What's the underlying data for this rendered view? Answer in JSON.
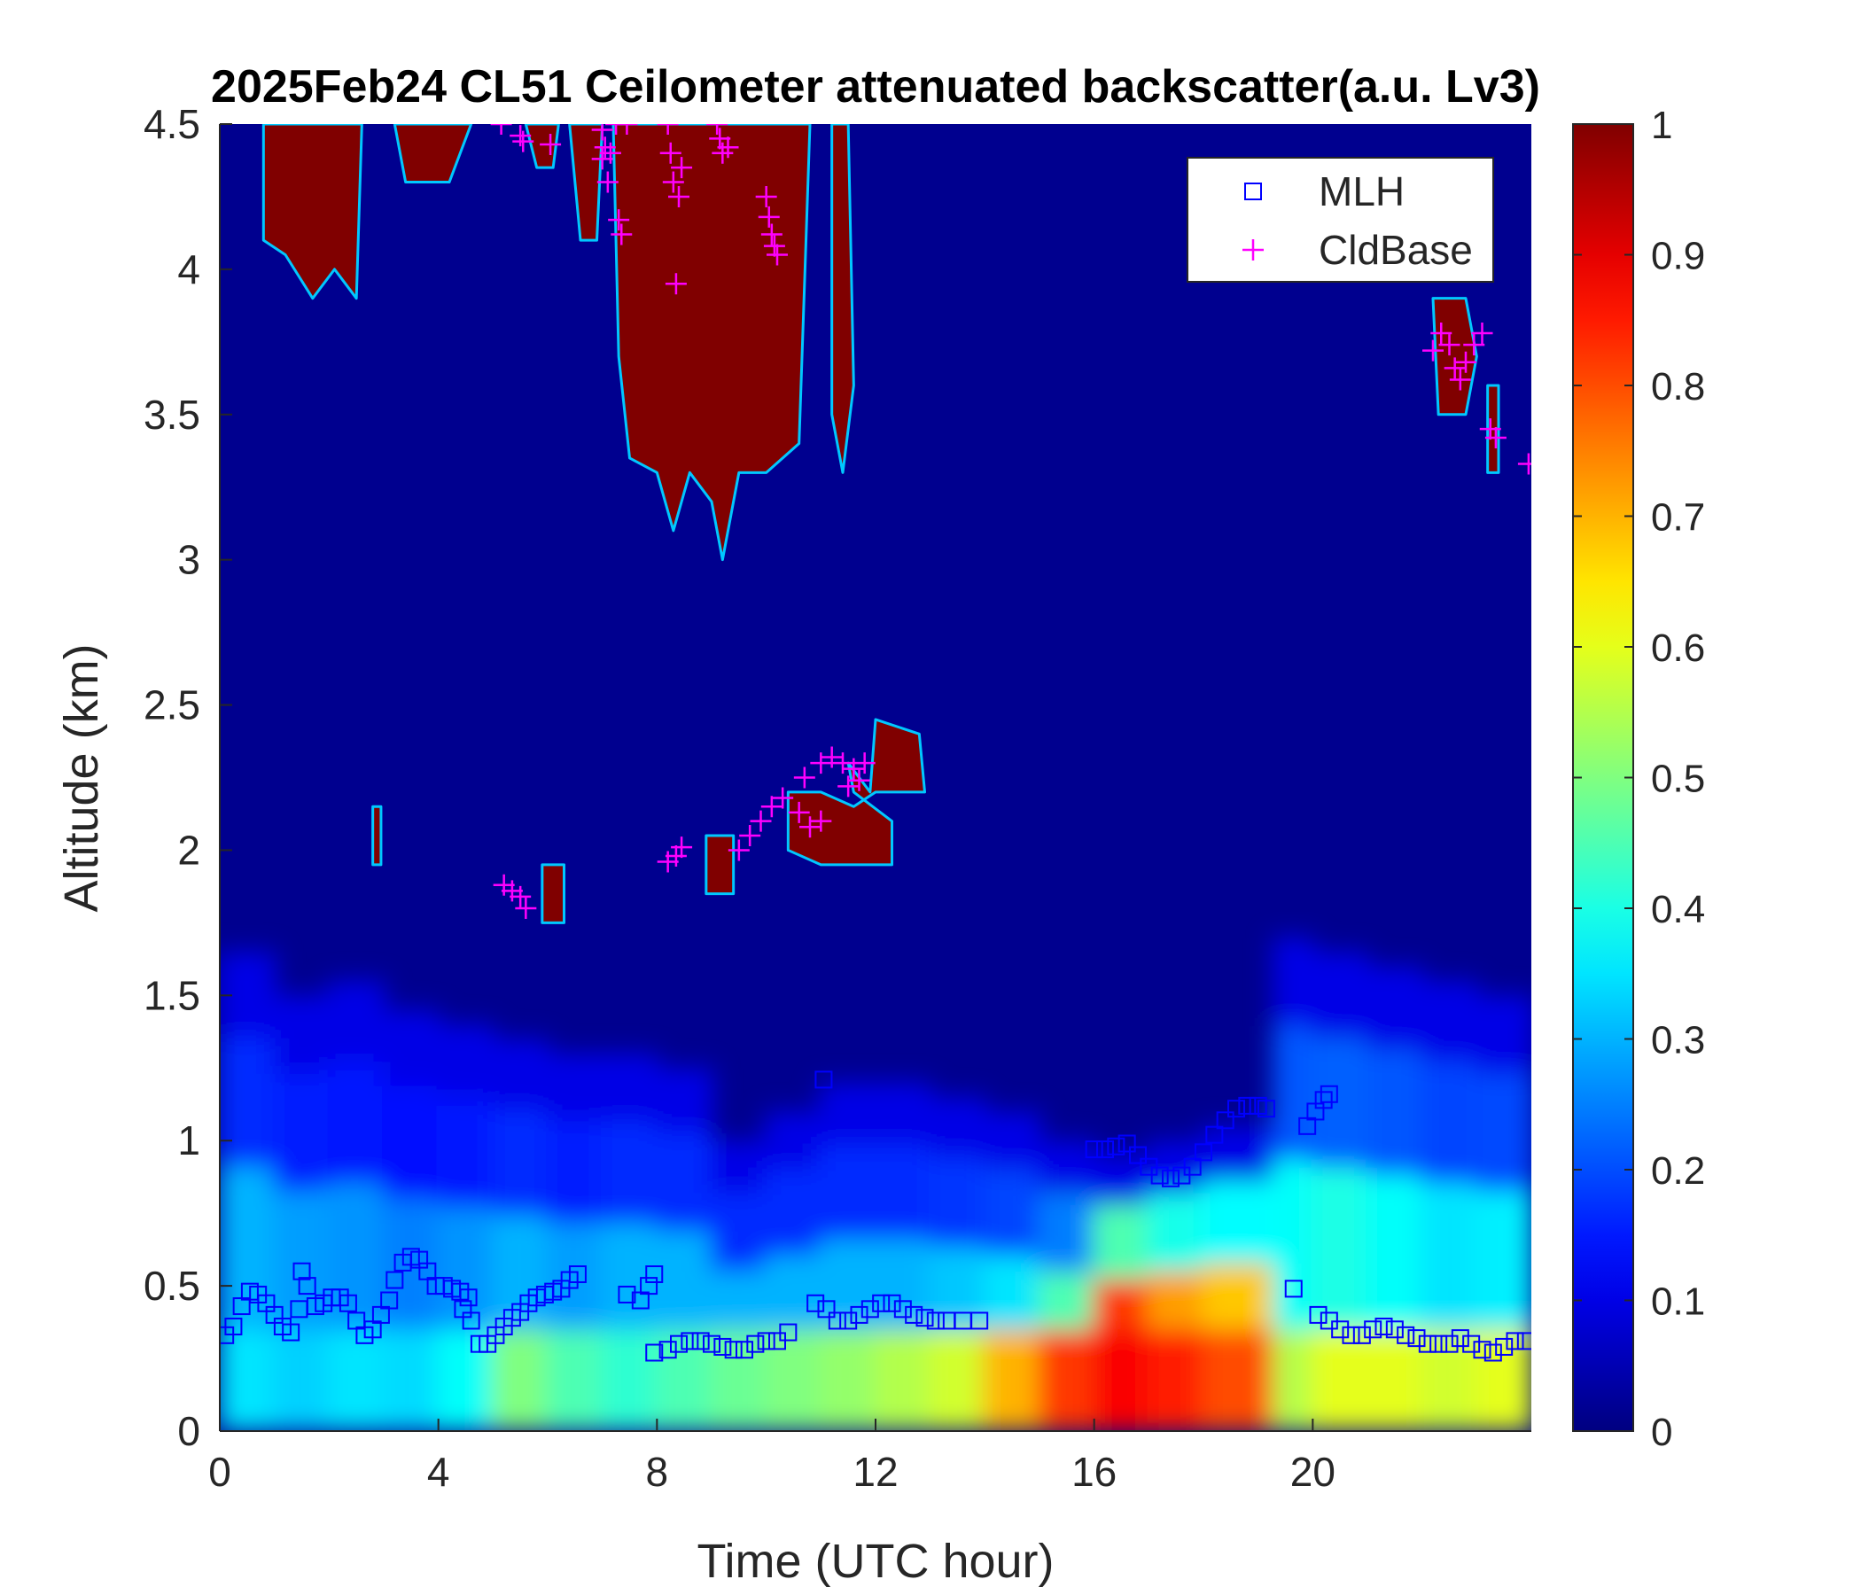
{
  "chart_data": {
    "type": "heatmap",
    "title": "2025Feb24 CL51 Ceilometer attenuated backscatter(a.u. Lv3)",
    "xlabel": "Time (UTC hour)",
    "ylabel": "Altitude (km)",
    "xlim": [
      0,
      24
    ],
    "ylim": [
      0,
      4.5
    ],
    "x_ticks": [
      0,
      4,
      8,
      12,
      16,
      20
    ],
    "x_tick_labels": [
      "0",
      "4",
      "8",
      "12",
      "16",
      "20"
    ],
    "y_ticks": [
      0,
      0.5,
      1,
      1.5,
      2,
      2.5,
      3,
      3.5,
      4,
      4.5
    ],
    "y_tick_labels": [
      "0",
      "0.5",
      "1",
      "1.5",
      "2",
      "2.5",
      "3",
      "3.5",
      "4",
      "4.5"
    ],
    "colorbar": {
      "colormap": "jet",
      "range": [
        0,
        1
      ],
      "ticks": [
        0,
        0.1,
        0.2,
        0.3,
        0.4,
        0.5,
        0.6,
        0.7,
        0.8,
        0.9,
        1
      ],
      "tick_labels": [
        "0",
        "0.1",
        "0.2",
        "0.3",
        "0.4",
        "0.5",
        "0.6",
        "0.7",
        "0.8",
        "0.9",
        "1"
      ]
    },
    "background_colors": {
      "plot": "#00008f",
      "figure": "#ffffff"
    },
    "legend": {
      "location": "top-right",
      "entries": [
        {
          "label": "MLH",
          "marker": "square",
          "color": "#0000ff"
        },
        {
          "label": "CldBase",
          "marker": "plus",
          "color": "#ff00ff"
        }
      ]
    },
    "boundary_layer_intensity": [
      {
        "t0": 0,
        "t1": 1,
        "low": 0.35,
        "mid": 0.3,
        "top_km": 1.65
      },
      {
        "t0": 1,
        "t1": 2,
        "low": 0.33,
        "mid": 0.28,
        "top_km": 1.5
      },
      {
        "t0": 2,
        "t1": 3,
        "low": 0.35,
        "mid": 0.27,
        "top_km": 1.55
      },
      {
        "t0": 3,
        "t1": 4,
        "low": 0.34,
        "mid": 0.25,
        "top_km": 1.45
      },
      {
        "t0": 4,
        "t1": 5,
        "low": 0.38,
        "mid": 0.27,
        "top_km": 1.4
      },
      {
        "t0": 5,
        "t1": 6,
        "low": 0.5,
        "mid": 0.3,
        "top_km": 1.35
      },
      {
        "t0": 6,
        "t1": 7,
        "low": 0.45,
        "mid": 0.28,
        "top_km": 1.3
      },
      {
        "t0": 7,
        "t1": 8,
        "low": 0.42,
        "mid": 0.3,
        "top_km": 1.3
      },
      {
        "t0": 8,
        "t1": 9,
        "low": 0.45,
        "mid": 0.3,
        "top_km": 1.25
      },
      {
        "t0": 9,
        "t1": 10,
        "low": 0.48,
        "mid": 0.3,
        "top_km": 1.0
      },
      {
        "t0": 10,
        "t1": 11,
        "low": 0.5,
        "mid": 0.3,
        "top_km": 1.1
      },
      {
        "t0": 11,
        "t1": 12,
        "low": 0.52,
        "mid": 0.3,
        "top_km": 1.2
      },
      {
        "t0": 12,
        "t1": 13,
        "low": 0.55,
        "mid": 0.3,
        "top_km": 1.2
      },
      {
        "t0": 13,
        "t1": 14,
        "low": 0.58,
        "mid": 0.32,
        "top_km": 1.15
      },
      {
        "t0": 14,
        "t1": 15,
        "low": 0.7,
        "mid": 0.35,
        "top_km": 1.1
      },
      {
        "t0": 15,
        "t1": 16,
        "low": 0.82,
        "mid": 0.45,
        "top_km": 1.0
      },
      {
        "t0": 16,
        "t1": 17,
        "low": 0.88,
        "mid": 0.82,
        "top_km": 0.95
      },
      {
        "t0": 17,
        "t1": 18,
        "low": 0.85,
        "mid": 0.72,
        "top_km": 1.0
      },
      {
        "t0": 18,
        "t1": 19.3,
        "low": 0.8,
        "mid": 0.68,
        "top_km": 1.05
      },
      {
        "t0": 19.3,
        "t1": 20,
        "low": 0.55,
        "mid": 0.38,
        "top_km": 1.7
      },
      {
        "t0": 20,
        "t1": 21,
        "low": 0.6,
        "mid": 0.4,
        "top_km": 1.65
      },
      {
        "t0": 21,
        "t1": 22,
        "low": 0.6,
        "mid": 0.38,
        "top_km": 1.6
      },
      {
        "t0": 22,
        "t1": 23,
        "low": 0.58,
        "mid": 0.35,
        "top_km": 1.55
      },
      {
        "t0": 23,
        "t1": 24,
        "low": 0.6,
        "mid": 0.36,
        "top_km": 1.5
      }
    ],
    "cloud_regions_km": [
      {
        "points": [
          [
            0.8,
            4.5
          ],
          [
            0.8,
            4.1
          ],
          [
            1.2,
            4.05
          ],
          [
            1.7,
            3.9
          ],
          [
            2.1,
            4.0
          ],
          [
            2.5,
            3.9
          ],
          [
            2.6,
            4.5
          ]
        ]
      },
      {
        "points": [
          [
            3.2,
            4.5
          ],
          [
            3.4,
            4.3
          ],
          [
            3.8,
            4.3
          ],
          [
            4.2,
            4.3
          ],
          [
            4.6,
            4.5
          ]
        ]
      },
      {
        "points": [
          [
            5.6,
            4.5
          ],
          [
            5.8,
            4.35
          ],
          [
            6.1,
            4.35
          ],
          [
            6.2,
            4.5
          ]
        ]
      },
      {
        "points": [
          [
            6.4,
            4.5
          ],
          [
            6.6,
            4.1
          ],
          [
            6.9,
            4.1
          ],
          [
            7.0,
            4.5
          ]
        ]
      },
      {
        "points": [
          [
            7.2,
            4.5
          ],
          [
            7.3,
            3.7
          ],
          [
            7.5,
            3.35
          ],
          [
            8.0,
            3.3
          ],
          [
            8.3,
            3.1
          ],
          [
            8.6,
            3.3
          ],
          [
            9.0,
            3.2
          ],
          [
            9.2,
            3.0
          ],
          [
            9.5,
            3.3
          ],
          [
            10.0,
            3.3
          ],
          [
            10.6,
            3.4
          ],
          [
            10.8,
            4.5
          ]
        ]
      },
      {
        "points": [
          [
            11.2,
            4.5
          ],
          [
            11.2,
            3.5
          ],
          [
            11.4,
            3.3
          ],
          [
            11.6,
            3.6
          ],
          [
            11.5,
            4.5
          ]
        ]
      },
      {
        "points": [
          [
            22.2,
            3.9
          ],
          [
            22.3,
            3.5
          ],
          [
            22.8,
            3.5
          ],
          [
            23.0,
            3.7
          ],
          [
            22.8,
            3.9
          ]
        ]
      },
      {
        "points": [
          [
            23.2,
            3.6
          ],
          [
            23.2,
            3.3
          ],
          [
            23.4,
            3.3
          ],
          [
            23.4,
            3.6
          ]
        ]
      },
      {
        "points": [
          [
            5.9,
            1.95
          ],
          [
            5.9,
            1.75
          ],
          [
            6.3,
            1.75
          ],
          [
            6.3,
            1.95
          ]
        ]
      },
      {
        "points": [
          [
            8.9,
            2.05
          ],
          [
            8.9,
            1.85
          ],
          [
            9.4,
            1.85
          ],
          [
            9.4,
            2.05
          ]
        ]
      },
      {
        "points": [
          [
            10.4,
            2.2
          ],
          [
            10.4,
            2.0
          ],
          [
            11.0,
            1.95
          ],
          [
            11.5,
            1.95
          ],
          [
            12.3,
            1.95
          ],
          [
            12.3,
            2.1
          ],
          [
            11.6,
            2.2
          ],
          [
            11.5,
            2.3
          ],
          [
            11.9,
            2.2
          ],
          [
            12.0,
            2.45
          ],
          [
            12.8,
            2.4
          ],
          [
            12.9,
            2.2
          ],
          [
            12.0,
            2.2
          ],
          [
            11.6,
            2.15
          ],
          [
            11.0,
            2.2
          ]
        ]
      },
      {
        "points": [
          [
            2.8,
            2.15
          ],
          [
            2.8,
            1.95
          ],
          [
            2.95,
            1.95
          ],
          [
            2.95,
            2.15
          ]
        ]
      }
    ],
    "mlh_points": [
      [
        0.1,
        0.33
      ],
      [
        0.25,
        0.36
      ],
      [
        0.4,
        0.43
      ],
      [
        0.55,
        0.48
      ],
      [
        0.7,
        0.47
      ],
      [
        0.85,
        0.44
      ],
      [
        1.0,
        0.4
      ],
      [
        1.15,
        0.36
      ],
      [
        1.3,
        0.34
      ],
      [
        1.45,
        0.42
      ],
      [
        1.5,
        0.55
      ],
      [
        1.6,
        0.5
      ],
      [
        1.75,
        0.43
      ],
      [
        1.9,
        0.44
      ],
      [
        2.05,
        0.46
      ],
      [
        2.2,
        0.46
      ],
      [
        2.35,
        0.44
      ],
      [
        2.5,
        0.38
      ],
      [
        2.65,
        0.33
      ],
      [
        2.8,
        0.35
      ],
      [
        2.95,
        0.4
      ],
      [
        3.1,
        0.45
      ],
      [
        3.2,
        0.52
      ],
      [
        3.35,
        0.58
      ],
      [
        3.5,
        0.6
      ],
      [
        3.65,
        0.59
      ],
      [
        3.8,
        0.55
      ],
      [
        3.95,
        0.5
      ],
      [
        4.1,
        0.5
      ],
      [
        4.25,
        0.49
      ],
      [
        4.4,
        0.48
      ],
      [
        4.55,
        0.46
      ],
      [
        4.45,
        0.42
      ],
      [
        4.6,
        0.38
      ],
      [
        4.75,
        0.3
      ],
      [
        4.9,
        0.3
      ],
      [
        5.05,
        0.33
      ],
      [
        5.2,
        0.36
      ],
      [
        5.35,
        0.39
      ],
      [
        5.5,
        0.41
      ],
      [
        5.65,
        0.44
      ],
      [
        5.8,
        0.46
      ],
      [
        5.95,
        0.47
      ],
      [
        6.1,
        0.48
      ],
      [
        6.25,
        0.49
      ],
      [
        6.4,
        0.52
      ],
      [
        6.55,
        0.54
      ],
      [
        7.45,
        0.47
      ],
      [
        7.7,
        0.45
      ],
      [
        7.85,
        0.5
      ],
      [
        7.95,
        0.54
      ],
      [
        7.95,
        0.27
      ],
      [
        8.2,
        0.28
      ],
      [
        8.4,
        0.3
      ],
      [
        8.6,
        0.31
      ],
      [
        8.8,
        0.31
      ],
      [
        9.0,
        0.3
      ],
      [
        9.2,
        0.29
      ],
      [
        9.4,
        0.28
      ],
      [
        9.6,
        0.28
      ],
      [
        9.8,
        0.3
      ],
      [
        10.0,
        0.31
      ],
      [
        10.2,
        0.31
      ],
      [
        10.4,
        0.34
      ],
      [
        10.9,
        0.44
      ],
      [
        11.1,
        0.42
      ],
      [
        11.3,
        0.38
      ],
      [
        11.5,
        0.38
      ],
      [
        11.7,
        0.4
      ],
      [
        11.9,
        0.42
      ],
      [
        12.1,
        0.44
      ],
      [
        12.3,
        0.44
      ],
      [
        12.5,
        0.42
      ],
      [
        12.7,
        0.4
      ],
      [
        12.9,
        0.39
      ],
      [
        13.1,
        0.38
      ],
      [
        13.3,
        0.38
      ],
      [
        13.6,
        0.38
      ],
      [
        13.9,
        0.38
      ],
      [
        11.05,
        1.21
      ],
      [
        16.0,
        0.97
      ],
      [
        16.2,
        0.97
      ],
      [
        16.4,
        0.98
      ],
      [
        16.6,
        0.99
      ],
      [
        16.8,
        0.95
      ],
      [
        17.0,
        0.91
      ],
      [
        17.2,
        0.88
      ],
      [
        17.4,
        0.87
      ],
      [
        17.6,
        0.88
      ],
      [
        17.8,
        0.91
      ],
      [
        18.0,
        0.96
      ],
      [
        18.2,
        1.02
      ],
      [
        18.4,
        1.07
      ],
      [
        18.6,
        1.11
      ],
      [
        18.8,
        1.12
      ],
      [
        19.0,
        1.12
      ],
      [
        19.15,
        1.11
      ],
      [
        19.65,
        0.49
      ],
      [
        19.9,
        1.05
      ],
      [
        20.05,
        1.1
      ],
      [
        20.2,
        1.14
      ],
      [
        20.3,
        1.16
      ],
      [
        20.1,
        0.4
      ],
      [
        20.3,
        0.38
      ],
      [
        20.5,
        0.35
      ],
      [
        20.7,
        0.33
      ],
      [
        20.9,
        0.33
      ],
      [
        21.1,
        0.35
      ],
      [
        21.3,
        0.36
      ],
      [
        21.5,
        0.35
      ],
      [
        21.7,
        0.33
      ],
      [
        21.9,
        0.32
      ],
      [
        22.1,
        0.3
      ],
      [
        22.3,
        0.3
      ],
      [
        22.5,
        0.3
      ],
      [
        22.7,
        0.32
      ],
      [
        22.9,
        0.3
      ],
      [
        23.1,
        0.28
      ],
      [
        23.3,
        0.27
      ],
      [
        23.5,
        0.29
      ],
      [
        23.7,
        0.31
      ],
      [
        23.9,
        0.31
      ]
    ],
    "cldbase_points": [
      [
        5.15,
        4.5
      ],
      [
        5.5,
        4.46
      ],
      [
        5.55,
        4.44
      ],
      [
        6.05,
        4.43
      ],
      [
        7.0,
        4.38
      ],
      [
        7.0,
        4.48
      ],
      [
        7.05,
        4.42
      ],
      [
        7.1,
        4.3
      ],
      [
        7.15,
        4.4
      ],
      [
        7.25,
        4.5
      ],
      [
        7.3,
        4.17
      ],
      [
        7.35,
        4.12
      ],
      [
        7.45,
        4.5
      ],
      [
        8.2,
        4.5
      ],
      [
        8.25,
        4.4
      ],
      [
        8.3,
        4.3
      ],
      [
        8.35,
        3.95
      ],
      [
        8.4,
        4.25
      ],
      [
        8.45,
        4.35
      ],
      [
        9.1,
        4.5
      ],
      [
        9.15,
        4.45
      ],
      [
        9.2,
        4.4
      ],
      [
        9.3,
        4.42
      ],
      [
        10.0,
        4.25
      ],
      [
        10.05,
        4.18
      ],
      [
        10.1,
        4.12
      ],
      [
        10.15,
        4.08
      ],
      [
        10.2,
        4.05
      ],
      [
        5.2,
        1.88
      ],
      [
        5.35,
        1.86
      ],
      [
        5.5,
        1.84
      ],
      [
        5.6,
        1.8
      ],
      [
        8.2,
        1.96
      ],
      [
        8.35,
        1.98
      ],
      [
        8.45,
        2.01
      ],
      [
        9.5,
        2.0
      ],
      [
        9.7,
        2.05
      ],
      [
        9.9,
        2.1
      ],
      [
        10.1,
        2.15
      ],
      [
        10.3,
        2.18
      ],
      [
        10.6,
        2.13
      ],
      [
        10.8,
        2.08
      ],
      [
        11.0,
        2.1
      ],
      [
        11.0,
        2.3
      ],
      [
        11.2,
        2.32
      ],
      [
        11.4,
        2.3
      ],
      [
        11.6,
        2.28
      ],
      [
        11.8,
        2.3
      ],
      [
        11.7,
        2.24
      ],
      [
        11.5,
        2.22
      ],
      [
        10.7,
        2.25
      ],
      [
        22.2,
        3.72
      ],
      [
        22.35,
        3.78
      ],
      [
        22.5,
        3.74
      ],
      [
        22.6,
        3.66
      ],
      [
        22.7,
        3.62
      ],
      [
        22.8,
        3.68
      ],
      [
        22.95,
        3.74
      ],
      [
        23.1,
        3.78
      ],
      [
        23.25,
        3.45
      ],
      [
        23.35,
        3.42
      ],
      [
        23.95,
        3.33
      ]
    ]
  }
}
